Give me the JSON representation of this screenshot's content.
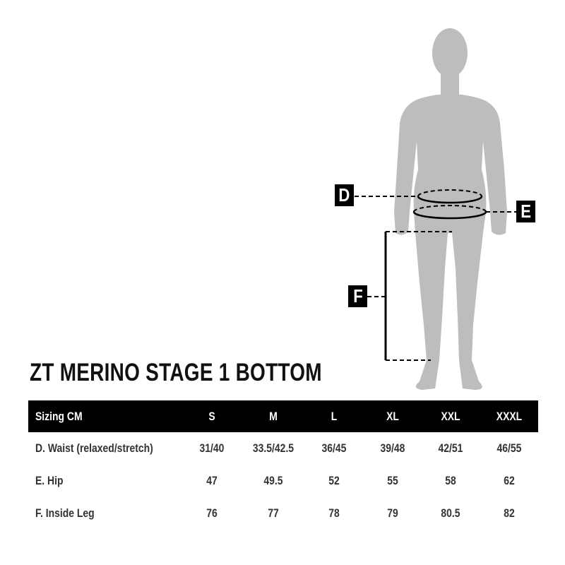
{
  "title": "ZT MERINO STAGE 1 BOTTOM",
  "markers": {
    "d": "D",
    "e": "E",
    "f": "F"
  },
  "colors": {
    "silhouette": "#bdbdbd",
    "header_bg": "#000000",
    "header_text": "#ffffff",
    "text": "#333333"
  },
  "table": {
    "header": [
      "Sizing CM",
      "S",
      "M",
      "L",
      "XL",
      "XXL",
      "XXXL"
    ],
    "rows": [
      [
        "D. Waist (relaxed/stretch)",
        "31/40",
        "33.5/42.5",
        "36/45",
        "39/48",
        "42/51",
        "46/55"
      ],
      [
        "E. Hip",
        "47",
        "49.5",
        "52",
        "55",
        "58",
        "62"
      ],
      [
        "F. Inside Leg",
        "76",
        "77",
        "78",
        "79",
        "80.5",
        "82"
      ]
    ]
  }
}
